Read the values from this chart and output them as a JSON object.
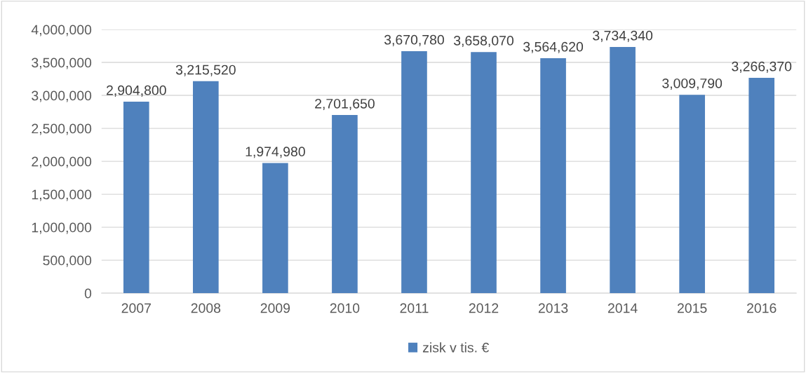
{
  "chart_data": {
    "type": "bar",
    "categories": [
      "2007",
      "2008",
      "2009",
      "2010",
      "2011",
      "2012",
      "2013",
      "2014",
      "2015",
      "2016"
    ],
    "series": [
      {
        "name": "zisk v tis. €",
        "color": "#4f81bd",
        "values": [
          2904800,
          3215520,
          1974980,
          2701650,
          3670780,
          3658070,
          3564620,
          3734340,
          3009790,
          3266370
        ],
        "value_labels": [
          "2,904,800",
          "3,215,520",
          "1,974,980",
          "2,701,650",
          "3,670,780",
          "3,658,070",
          "3,564,620",
          "3,734,340",
          "3,009,790",
          "3,266,370"
        ]
      }
    ],
    "ylim": [
      0,
      4000000
    ],
    "yticks": [
      {
        "value": 0,
        "label": "0"
      },
      {
        "value": 500000,
        "label": "500,000"
      },
      {
        "value": 1000000,
        "label": "1,000,000"
      },
      {
        "value": 1500000,
        "label": "1,500,000"
      },
      {
        "value": 2000000,
        "label": "2,000,000"
      },
      {
        "value": 2500000,
        "label": "2,500,000"
      },
      {
        "value": 3000000,
        "label": "3,000,000"
      },
      {
        "value": 3500000,
        "label": "3,500,000"
      },
      {
        "value": 4000000,
        "label": "4,000,000"
      }
    ],
    "grid": "y",
    "legend": "bottom"
  }
}
